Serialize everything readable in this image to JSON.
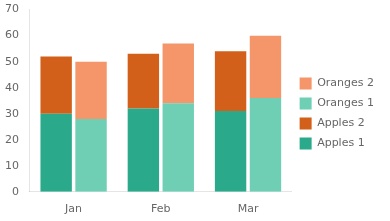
{
  "chart_data": {
    "type": "bar",
    "categories": [
      "Jan",
      "Feb",
      "Mar"
    ],
    "series": [
      {
        "name": "Apples 1",
        "color": "#2aaa8a",
        "values": [
          30,
          32,
          31
        ]
      },
      {
        "name": "Apples 2",
        "color": "#d2601a",
        "values": [
          22,
          21,
          23
        ]
      },
      {
        "name": "Oranges 1",
        "color": "#6ecfb4",
        "values": [
          28,
          34,
          36
        ]
      },
      {
        "name": "Oranges 2",
        "color": "#f4956a",
        "values": [
          22,
          23,
          24
        ]
      }
    ],
    "stacked": [
      [
        "Apples 1",
        "Apples 2"
      ],
      [
        "Oranges 1",
        "Oranges 2"
      ]
    ],
    "ylim": [
      0,
      70
    ],
    "yticks": [
      0,
      10,
      20,
      30,
      40,
      50,
      60,
      70
    ],
    "grid": false,
    "legend": "right"
  }
}
